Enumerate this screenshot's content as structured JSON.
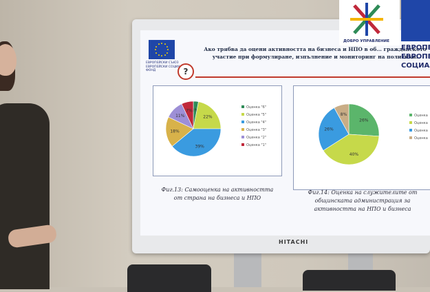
{
  "slide": {
    "eu_logo_text": "ЕВРОПЕЙСКИ СЪЮЗ ЕВРОПЕЙСКИ СОЦИАЛЕН ФОНД",
    "title": "Ако трябва да оцени активността на бизнеса и НПО в об… гражданското участие при формулиране, изпълнение и мониторинг на политики.",
    "question_mark": "?",
    "caption_left": "Фиг.13: Самооценка на активността от страна на бизнеса и НПО",
    "caption_right": "Фиг.14: Оценка на служителите от общинската администрация за активността на НПО и бизнеса"
  },
  "monitor": {
    "brand": "HITACHI"
  },
  "overlay": {
    "dobro_label": "ДОБРО УПРАВЛЕНИЕ",
    "eu_right_text_1": "ЕВРОПЕЙ",
    "eu_right_text_2": "ЕВРОПЕЙ",
    "eu_right_text_3": "СОЦИАЛЕ"
  },
  "chart_data": [
    {
      "type": "pie",
      "slices": [
        {
          "label": "Оценка \"6\"",
          "value": 3,
          "color": "#2e8b57"
        },
        {
          "label": "Оценка \"5\"",
          "value": 22,
          "color": "#c6d94a"
        },
        {
          "label": "Оценка \"4\"",
          "value": 39,
          "color": "#3a9be0"
        },
        {
          "label": "Оценка \"3\"",
          "value": 18,
          "color": "#d8b24a"
        },
        {
          "label": "Оценка \"2\"",
          "value": 11,
          "color": "#9d8fd6"
        },
        {
          "label": "Оценка \"1\"",
          "value": 7,
          "color": "#c0283a"
        }
      ]
    },
    {
      "type": "pie",
      "slices": [
        {
          "label": "Оценка",
          "value": 26,
          "color": "#5bb56b"
        },
        {
          "label": "Оценка",
          "value": 40,
          "color": "#c6d94a"
        },
        {
          "label": "Оценка",
          "value": 26,
          "color": "#3a9be0"
        },
        {
          "label": "Оценка",
          "value": 8,
          "color": "#c9ad86"
        }
      ]
    }
  ]
}
